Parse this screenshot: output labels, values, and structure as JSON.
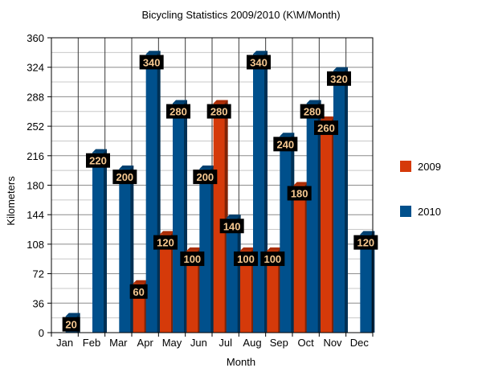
{
  "chart_data": {
    "type": "bar",
    "title": "Bicycling Statistics 2009/2010 (K\\M/Month)",
    "xlabel": "Month",
    "ylabel": "Kilometers",
    "ylim": [
      0,
      360
    ],
    "yticks": [
      0,
      36,
      72,
      108,
      144,
      180,
      216,
      252,
      288,
      324,
      360
    ],
    "grid": true,
    "legend_position": "right",
    "categories": [
      "Jan",
      "Feb",
      "Mar",
      "Apr",
      "May",
      "Jun",
      "Jul",
      "Aug",
      "Sep",
      "Oct",
      "Nov",
      "Dec"
    ],
    "series": [
      {
        "name": "2009",
        "color": "#d53a0a",
        "values": [
          0,
          0,
          0,
          60,
          120,
          100,
          280,
          100,
          100,
          180,
          260,
          0
        ]
      },
      {
        "name": "2010",
        "color": "#00508c",
        "values": [
          20,
          220,
          200,
          340,
          280,
          200,
          140,
          340,
          240,
          280,
          320,
          120
        ]
      }
    ],
    "data_labels": [
      {
        "category": "Jan",
        "text": "20"
      },
      {
        "category": "Feb",
        "text": "220"
      },
      {
        "category": "Mar",
        "text": "200"
      },
      {
        "category": "Apr",
        "text": "340"
      },
      {
        "category": "Apr",
        "text": "60"
      },
      {
        "category": "May",
        "text": "280"
      },
      {
        "category": "May",
        "text": "120"
      },
      {
        "category": "Jun",
        "text": "200"
      },
      {
        "category": "Jun",
        "text": "100"
      },
      {
        "category": "Jul",
        "text": "280"
      },
      {
        "category": "Jul",
        "text": "140"
      },
      {
        "category": "Aug",
        "text": "340"
      },
      {
        "category": "Aug",
        "text": "100"
      },
      {
        "category": "Sep",
        "text": "240"
      },
      {
        "category": "Sep",
        "text": "100"
      },
      {
        "category": "Oct",
        "text": "280"
      },
      {
        "category": "Oct",
        "text": "180"
      },
      {
        "category": "Nov",
        "text": "320"
      },
      {
        "category": "Nov",
        "text": "260"
      },
      {
        "category": "Dec",
        "text": "120"
      }
    ]
  }
}
